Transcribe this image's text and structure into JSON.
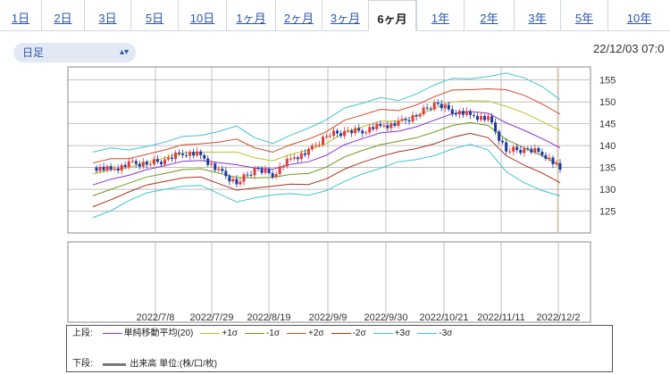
{
  "tabs": [
    "1日",
    "2日",
    "3日",
    "5日",
    "10日",
    "1ヶ月",
    "2ヶ月",
    "3ヶ月",
    "6ヶ月",
    "1年",
    "2年",
    "3年",
    "5年",
    "10年"
  ],
  "active_tab": 8,
  "period_select": {
    "value": "日足"
  },
  "timestamp": "22/12/03 07:0",
  "colors": {
    "up": "#e23b3b",
    "down": "#1b3aa0",
    "ma": "#8e2fc9",
    "s1": "#b9c22e",
    "sm1": "#6e9a1c",
    "s2": "#d34a28",
    "sm2": "#a8321a",
    "s3": "#40c4d6",
    "sm3": "#40c4d6"
  },
  "chart_data": {
    "type": "candlestick",
    "y_ticks": [
      125,
      130,
      135,
      140,
      145,
      150,
      155
    ],
    "ylim": [
      120,
      158
    ],
    "x_labels": [
      "2022/7/8",
      "2022/7/29",
      "2022/8/19",
      "2022/9/9",
      "2022/9/30",
      "2022/10/21",
      "2022/11/11",
      "2022/12/2"
    ],
    "x": [
      "2022/6/6",
      "2022/6/13",
      "2022/6/20",
      "2022/6/27",
      "2022/7/4",
      "2022/7/11",
      "2022/7/18",
      "2022/7/25",
      "2022/8/1",
      "2022/8/8",
      "2022/8/15",
      "2022/8/22",
      "2022/8/29",
      "2022/9/5",
      "2022/9/12",
      "2022/9/19",
      "2022/9/26",
      "2022/10/3",
      "2022/10/10",
      "2022/10/17",
      "2022/10/24",
      "2022/10/31",
      "2022/11/7",
      "2022/11/14",
      "2022/11/21",
      "2022/11/28",
      "2022/12/2"
    ],
    "close": [
      135,
      134.5,
      135.7,
      136,
      136.5,
      138.5,
      137.8,
      134,
      131.5,
      134.5,
      133.5,
      137,
      138.5,
      142.5,
      143,
      143.5,
      144.5,
      145,
      147,
      149.5,
      148,
      147,
      146,
      139,
      139,
      138.5,
      134.5
    ],
    "series": [
      {
        "name": "単純移動平均(20)",
        "key": "ma",
        "values": [
          131,
          132.3,
          133.2,
          134.5,
          135.4,
          136.4,
          136.6,
          136.1,
          135.6,
          134.9,
          134.6,
          135.7,
          136.3,
          137.8,
          140.2,
          141.6,
          142.9,
          143.3,
          144.3,
          145.8,
          147.3,
          147.8,
          147.4,
          145.2,
          143.5,
          141.6,
          139.5
        ]
      },
      {
        "name": "+1σ",
        "key": "s1",
        "values": [
          133.5,
          134.5,
          135,
          136.2,
          137.2,
          138.3,
          138.5,
          138.5,
          138.5,
          137.2,
          136.5,
          138,
          139,
          140.5,
          143,
          144.3,
          145.6,
          145.6,
          146.8,
          148.5,
          150,
          150.3,
          150.2,
          149,
          147.5,
          145.5,
          143.5
        ]
      },
      {
        "name": "-1σ",
        "key": "sm1",
        "values": [
          128.5,
          130,
          131.4,
          132.8,
          133.6,
          134.5,
          134.7,
          133.7,
          132.7,
          132.6,
          132.7,
          133.4,
          133.6,
          135.1,
          137.4,
          138.9,
          140.2,
          141,
          141.8,
          143.1,
          144.6,
          145.3,
          144.6,
          141.4,
          139.5,
          137.7,
          135.5
        ]
      },
      {
        "name": "+2σ",
        "key": "s2",
        "values": [
          136,
          137,
          137,
          138,
          139,
          140.2,
          140.4,
          140.8,
          141.5,
          139.5,
          138.5,
          140.2,
          141.5,
          143.2,
          145.8,
          147,
          148.3,
          148,
          149.3,
          151.2,
          152.7,
          152.8,
          153,
          152.8,
          151.5,
          149.5,
          147.2
        ]
      },
      {
        "name": "-2σ",
        "key": "sm2",
        "values": [
          126,
          127.6,
          129.4,
          131,
          131.8,
          132.6,
          132.8,
          131.3,
          129.8,
          130.3,
          130.7,
          131.2,
          131.1,
          132.4,
          134.6,
          136.2,
          137.5,
          138.6,
          139.3,
          140.4,
          141.9,
          142.8,
          141.8,
          137.7,
          135.5,
          133.7,
          131.5
        ]
      },
      {
        "name": "+3σ",
        "key": "s3",
        "values": [
          138.5,
          139.5,
          139,
          139.8,
          140.8,
          142.1,
          142.3,
          143.2,
          144.5,
          141.8,
          140.5,
          142.4,
          144,
          145.9,
          148.6,
          149.7,
          151,
          150.3,
          151.8,
          153.9,
          155.4,
          155.3,
          155.8,
          156.6,
          155.5,
          153.5,
          150.5
        ]
      },
      {
        "name": "-3σ",
        "key": "sm3",
        "values": [
          123.5,
          125.1,
          127.4,
          129.2,
          130,
          130.7,
          130.9,
          129,
          127.1,
          128,
          128.7,
          129,
          128.6,
          129.7,
          131.8,
          133.5,
          134.8,
          136.3,
          136.8,
          137.7,
          139.2,
          140.3,
          139,
          134,
          131.5,
          129.7,
          128.5
        ]
      }
    ],
    "legend": {
      "upper_label": "上段:",
      "lower_label": "下段:",
      "items": [
        "単純移動平均(20)",
        "+1σ",
        "-1σ",
        "+2σ",
        "-2σ",
        "+3σ",
        "-3σ"
      ],
      "volume": "出来高 単位:(株/口/枚)"
    }
  }
}
